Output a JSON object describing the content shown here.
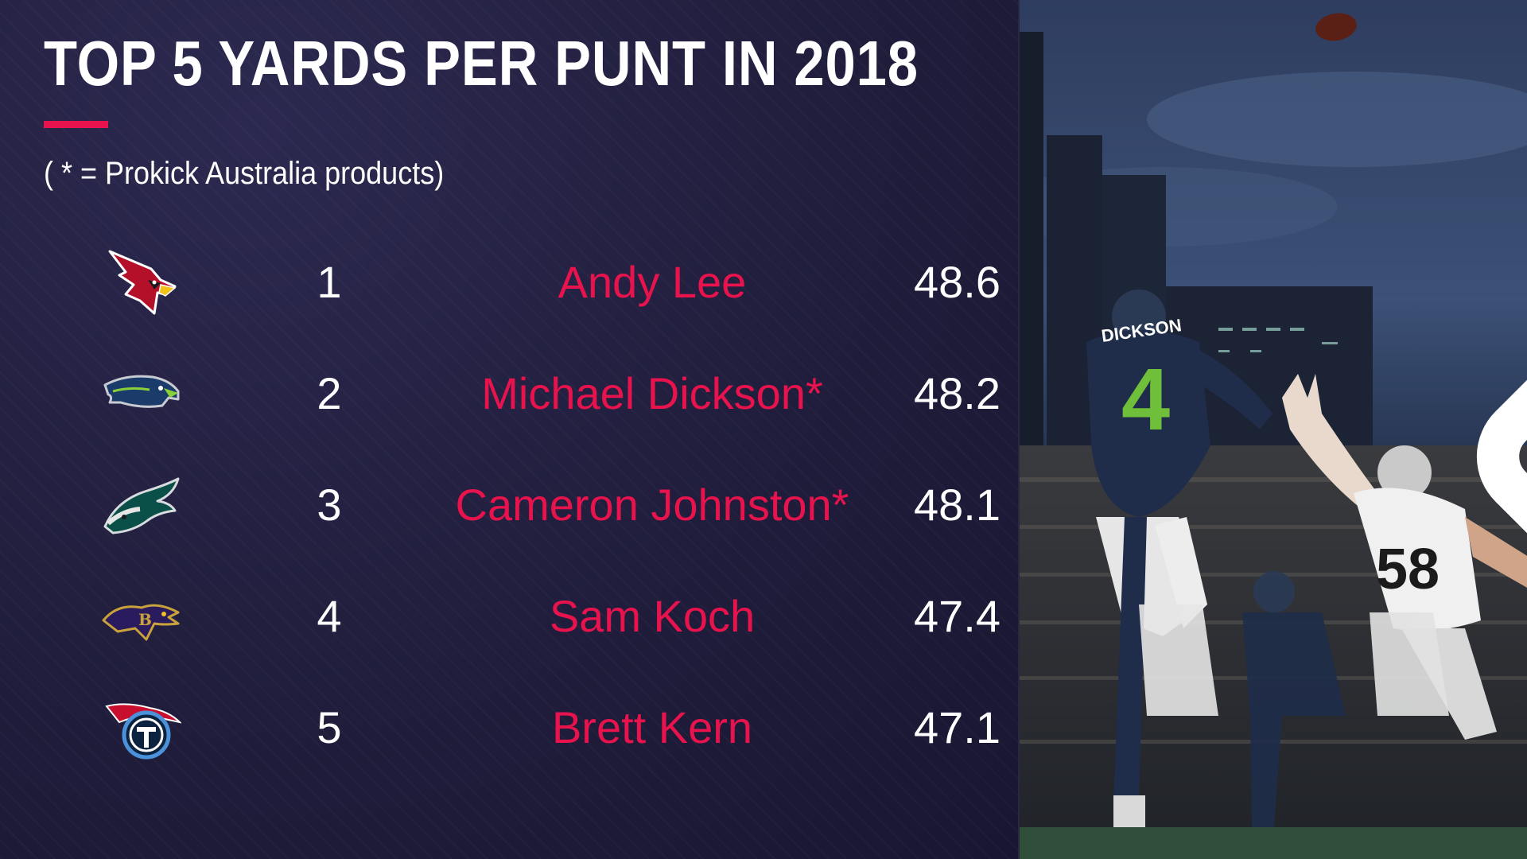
{
  "graphic": {
    "title": "TOP 5 YARDS PER PUNT IN 2018",
    "note": "( * = Prokick Australia products)"
  },
  "accent_color": "#e8134d",
  "rows": [
    {
      "rank": "1",
      "player": "Andy Lee",
      "ypp": "48.6",
      "team_icon": "cardinals-logo-icon"
    },
    {
      "rank": "2",
      "player": "Michael Dickson*",
      "ypp": "48.2",
      "team_icon": "seahawks-logo-icon"
    },
    {
      "rank": "3",
      "player": "Cameron Johnston*",
      "ypp": "48.1",
      "team_icon": "eagles-logo-icon"
    },
    {
      "rank": "4",
      "player": "Sam Koch",
      "ypp": "47.4",
      "team_icon": "ravens-logo-icon"
    },
    {
      "rank": "5",
      "player": "Brett Kern",
      "ypp": "47.1",
      "team_icon": "titans-logo-icon"
    }
  ],
  "photo": {
    "jersey_name": "DICKSON",
    "punter_number": "4",
    "defender_number": "58"
  }
}
